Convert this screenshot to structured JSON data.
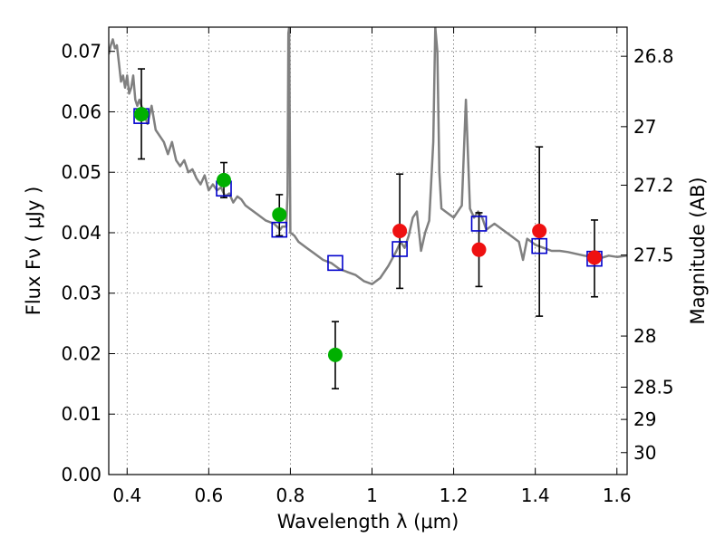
{
  "chart_data": {
    "type": "scatter",
    "xlabel": "Wavelength  λ (μm)",
    "ylabel": "Flux  Fν  ( μJy )",
    "ylabel_right": "Magnitude (AB)",
    "xlim": [
      0.355,
      1.625
    ],
    "ylim": [
      0.0,
      0.074
    ],
    "x_ticks": [
      "0.4",
      "0.6",
      "0.8",
      "1",
      "1.2",
      "1.4",
      "1.6"
    ],
    "x_tick_values": [
      0.4,
      0.6,
      0.8,
      1.0,
      1.2,
      1.4,
      1.6
    ],
    "y_ticks": [
      "0.00",
      "0.01",
      "0.02",
      "0.03",
      "0.04",
      "0.05",
      "0.06",
      "0.07"
    ],
    "y_tick_values": [
      0.0,
      0.01,
      0.02,
      0.03,
      0.04,
      0.05,
      0.06,
      0.07
    ],
    "mag_ticks": [
      "26.8",
      "27",
      "27.2",
      "27.5",
      "28",
      "28.5",
      "29",
      "30"
    ],
    "mag_tick_values": [
      26.8,
      27.0,
      27.2,
      27.5,
      28.0,
      28.5,
      29.0,
      30.0
    ],
    "grid": true,
    "series": [
      {
        "kind": "line",
        "color": "#808080",
        "x": [
          0.355,
          0.36,
          0.365,
          0.37,
          0.375,
          0.38,
          0.385,
          0.39,
          0.395,
          0.4,
          0.405,
          0.41,
          0.415,
          0.42,
          0.425,
          0.43,
          0.44,
          0.45,
          0.46,
          0.47,
          0.48,
          0.49,
          0.5,
          0.51,
          0.52,
          0.53,
          0.54,
          0.55,
          0.56,
          0.57,
          0.58,
          0.59,
          0.6,
          0.61,
          0.62,
          0.63,
          0.64,
          0.65,
          0.66,
          0.67,
          0.68,
          0.69,
          0.7,
          0.72,
          0.74,
          0.76,
          0.775,
          0.78,
          0.79,
          0.793,
          0.795,
          0.797,
          0.8,
          0.81,
          0.82,
          0.84,
          0.86,
          0.88,
          0.9,
          0.92,
          0.94,
          0.96,
          0.98,
          1.0,
          1.02,
          1.04,
          1.06,
          1.07,
          1.08,
          1.09,
          1.1,
          1.11,
          1.12,
          1.13,
          1.14,
          1.15,
          1.155,
          1.16,
          1.165,
          1.17,
          1.18,
          1.2,
          1.22,
          1.23,
          1.24,
          1.25,
          1.26,
          1.27,
          1.28,
          1.3,
          1.32,
          1.34,
          1.36,
          1.37,
          1.38,
          1.4,
          1.42,
          1.44,
          1.46,
          1.48,
          1.5,
          1.52,
          1.54,
          1.56,
          1.58,
          1.6,
          1.625
        ],
        "values": [
          0.0695,
          0.071,
          0.072,
          0.0705,
          0.071,
          0.068,
          0.065,
          0.066,
          0.064,
          0.066,
          0.063,
          0.064,
          0.066,
          0.062,
          0.061,
          0.062,
          0.06,
          0.058,
          0.061,
          0.057,
          0.056,
          0.055,
          0.053,
          0.055,
          0.052,
          0.051,
          0.052,
          0.05,
          0.0505,
          0.049,
          0.048,
          0.0495,
          0.047,
          0.048,
          0.047,
          0.0475,
          0.046,
          0.0465,
          0.045,
          0.046,
          0.0455,
          0.0445,
          0.044,
          0.043,
          0.042,
          0.0415,
          0.0405,
          0.041,
          0.041,
          0.0465,
          0.073,
          0.074,
          0.04,
          0.0395,
          0.0385,
          0.0375,
          0.0365,
          0.0355,
          0.035,
          0.034,
          0.0335,
          0.033,
          0.032,
          0.0315,
          0.0325,
          0.0345,
          0.037,
          0.0385,
          0.0375,
          0.0395,
          0.0425,
          0.0435,
          0.037,
          0.04,
          0.042,
          0.055,
          0.074,
          0.07,
          0.05,
          0.044,
          0.0435,
          0.0425,
          0.0445,
          0.062,
          0.044,
          0.0425,
          0.0435,
          0.0425,
          0.0405,
          0.0415,
          0.0405,
          0.0395,
          0.0385,
          0.0355,
          0.039,
          0.038,
          0.0375,
          0.037,
          0.037,
          0.0368,
          0.0365,
          0.0362,
          0.036,
          0.0358,
          0.0362,
          0.036,
          0.0362
        ]
      },
      {
        "kind": "squares",
        "color": "#0000cc",
        "x": [
          0.435,
          0.637,
          0.773,
          0.91,
          1.068,
          1.262,
          1.41,
          1.545
        ],
        "values": [
          0.0593,
          0.0473,
          0.0405,
          0.035,
          0.0373,
          0.0415,
          0.0378,
          0.0357
        ]
      },
      {
        "kind": "points",
        "color": "#00b000",
        "x": [
          0.435,
          0.637,
          0.773,
          0.91
        ],
        "values": [
          0.0596,
          0.0487,
          0.043,
          0.0198
        ],
        "err_low": [
          0.0522,
          0.0458,
          0.0395,
          0.0142
        ],
        "err_high": [
          0.0671,
          0.0516,
          0.0463,
          0.0253
        ]
      },
      {
        "kind": "points",
        "color": "#ee1111",
        "x": [
          1.068,
          1.262,
          1.41,
          1.545
        ],
        "values": [
          0.0403,
          0.0372,
          0.0403,
          0.0359
        ],
        "err_low": [
          0.0308,
          0.0311,
          0.0262,
          0.0294
        ],
        "err_high": [
          0.0497,
          0.0433,
          0.0542,
          0.0421
        ]
      }
    ]
  }
}
